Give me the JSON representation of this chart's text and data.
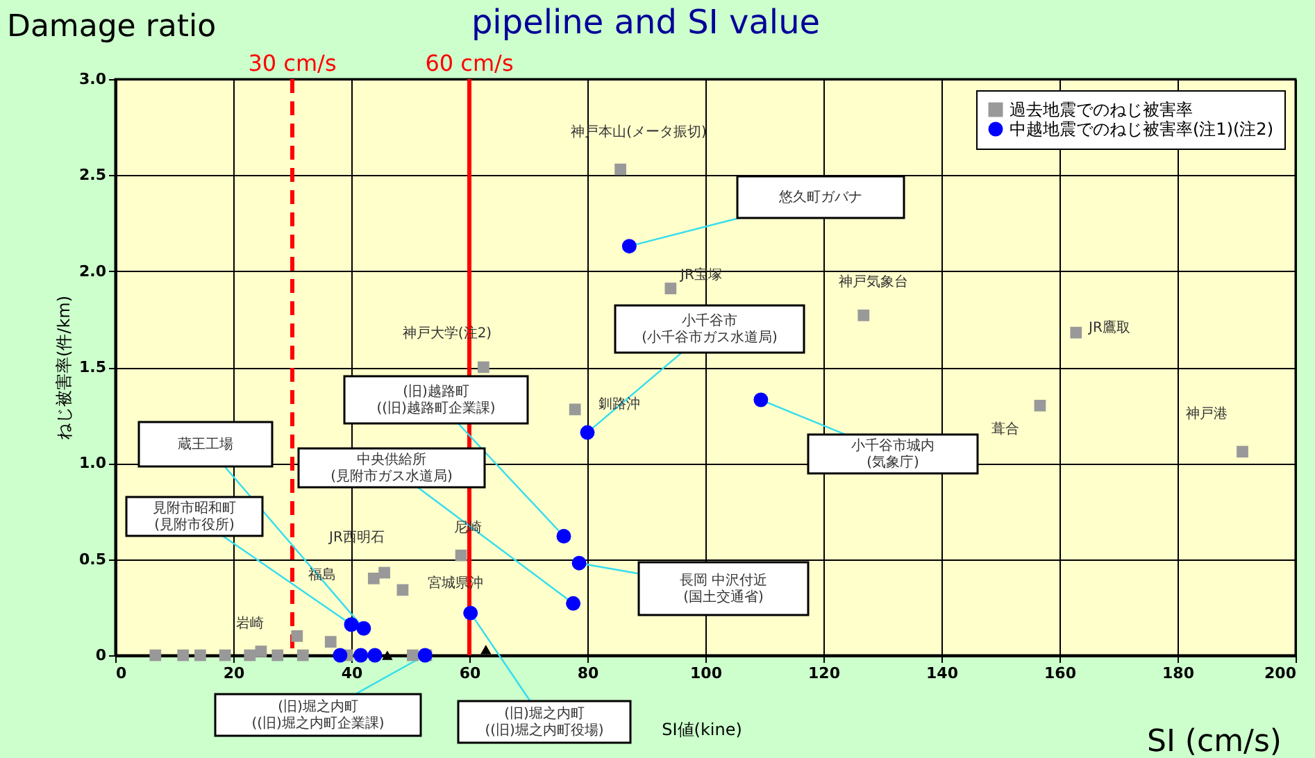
{
  "chart_data": {
    "type": "scatter",
    "title": "pipeline and SI value",
    "xlabel": "SI値(kine)",
    "ylabel": "ねじ被害率(件/km)",
    "xlim": [
      0,
      200
    ],
    "xticks": [
      0,
      20,
      40,
      60,
      80,
      100,
      120,
      140,
      160,
      180,
      200
    ],
    "ylim": [
      0,
      3
    ],
    "yticks": [
      0,
      {
        "value": 0.5,
        "label": "0.5"
      },
      {
        "value": 1,
        "label": "1.0"
      },
      {
        "value": 1.5,
        "label": "1.5"
      },
      {
        "value": 2,
        "label": "2.0"
      },
      {
        "value": 2.5,
        "label": "2.5"
      },
      {
        "value": 3,
        "label": "3.0"
      }
    ],
    "grid": true,
    "legend": "top right",
    "series": [
      {
        "name": "過去地震でのねじ被害率",
        "color": "#999999",
        "marker": "square",
        "x": [
          85.6,
          94.1,
          126.8,
          162.8,
          62.4,
          77.9,
          156.7,
          191,
          58.6,
          43.8,
          45.6,
          48.7,
          30.8,
          36.5,
          6.8,
          11.5,
          14.4,
          18.6,
          22.8,
          24.7,
          27.5,
          31.8,
          39.3,
          50.4,
          52.7
        ],
        "values": [
          2.53,
          1.91,
          1.77,
          1.68,
          1.5,
          1.28,
          1.3,
          1.06,
          0.52,
          0.4,
          0.43,
          0.34,
          0.1,
          0.07,
          0,
          0,
          0,
          0,
          0,
          0.02,
          0,
          0,
          0,
          0,
          0
        ]
      },
      {
        "name": "中越地震でのねじ被害率(注1)(注2)",
        "color": "#0000ff",
        "marker": "circle",
        "x": [
          87.1,
          80.0,
          109.4,
          76.0,
          78.6,
          77.6,
          60.2,
          40.0,
          42.1,
          38.1,
          41.6,
          44.0,
          52.5
        ],
        "values": [
          2.13,
          1.16,
          1.33,
          0.62,
          0.48,
          0.27,
          0.22,
          0.16,
          0.14,
          0,
          0,
          0,
          0
        ]
      },
      {
        "color": "#000000",
        "marker": "triangle",
        "x": [
          46.1,
          62.8
        ],
        "values": [
          0,
          0.03
        ]
      }
    ],
    "ref_lines": [
      {
        "axis": "x",
        "value": 30,
        "label": "30 cm/s",
        "color": "#ff0000",
        "line_style": "dashed"
      },
      {
        "axis": "x",
        "value": 60,
        "label": "60 cm/s",
        "color": "#ff0000",
        "line_style": "solid"
      }
    ],
    "annotations": [
      "Damage ratio",
      "SI (cm/s)",
      "神戸本山(メータ振切)",
      {
        "text": "悠久町ガバナ",
        "x": 87.1,
        "y": 2.13
      },
      "JR宝塚",
      "神戸気象台",
      {
        "text": "小千谷市\n(小千谷市ガス水道局)",
        "x": 80.0,
        "y": 1.16
      },
      "JR鷹取",
      "神戸大学(注2)",
      {
        "text": "(旧)越路町\n((旧)越路町企業課)",
        "x": 76.0,
        "y": 0.62
      },
      "釧路沖",
      "葺合",
      "神戸港",
      {
        "text": "蔵王工場",
        "x": 42.1,
        "y": 0.14
      },
      {
        "text": "中央供給所\n(見附市ガス水道局)",
        "x": 77.6,
        "y": 0.27
      },
      {
        "text": "小千谷市城内\n(気象庁)",
        "x": 109.4,
        "y": 1.33
      },
      {
        "text": "見附市昭和町\n(見附市役所)",
        "x": 40.0,
        "y": 0.16
      },
      "JR西明石",
      "尼崎",
      "福島",
      "宮城県沖",
      {
        "text": "長岡 中沢付近\n(国土交通省)",
        "x": 78.6,
        "y": 0.48
      },
      "岩崎",
      {
        "text": "(旧)堀之内町\n((旧)堀之内町企業課)",
        "x": 52.5,
        "y": 0
      },
      {
        "text": "(旧)堀之内町\n((旧)堀之内町役場)",
        "x": 60.2,
        "y": 0.22
      }
    ]
  }
}
